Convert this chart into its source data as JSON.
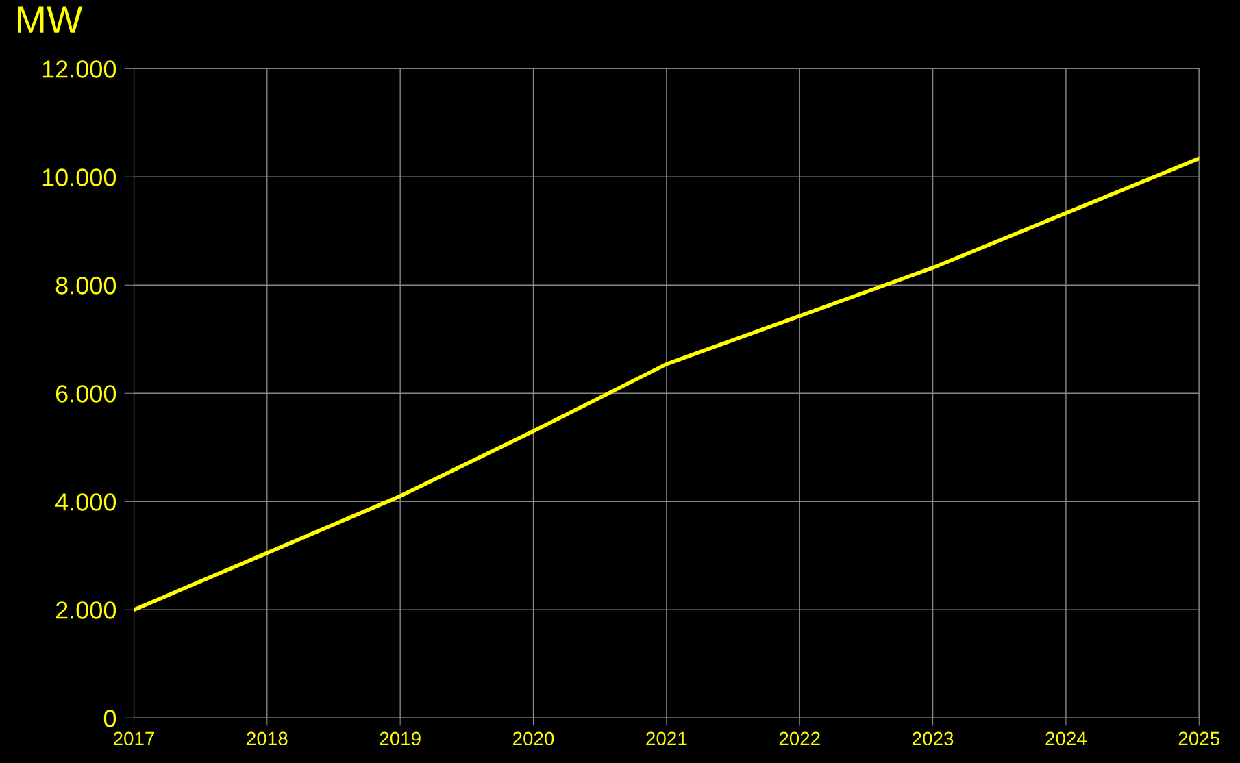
{
  "chart_data": {
    "type": "line",
    "ylabel": "MW",
    "x": [
      2017,
      2018,
      2019,
      2020,
      2021,
      2022,
      2023,
      2024,
      2025
    ],
    "series": [
      {
        "color": "#ffff00",
        "values": [
          2000,
          3050,
          4100,
          5300,
          6540,
          7430,
          8320,
          9330,
          10340
        ]
      }
    ],
    "xlim": [
      2017,
      2025
    ],
    "xticks": [
      2017,
      2018,
      2019,
      2020,
      2021,
      2022,
      2023,
      2024,
      2025
    ],
    "ylim": [
      0,
      12000
    ],
    "yticks": [
      {
        "value": 0,
        "label": "0"
      },
      {
        "value": 2000,
        "label": "2.000"
      },
      {
        "value": 4000,
        "label": "4.000"
      },
      {
        "value": 6000,
        "label": "6.000"
      },
      {
        "value": 8000,
        "label": "8.000"
      },
      {
        "value": 10000,
        "label": "10.000"
      },
      {
        "value": 12000,
        "label": "12.000"
      }
    ],
    "grid": true,
    "marker": "none",
    "line_style": "solid"
  }
}
